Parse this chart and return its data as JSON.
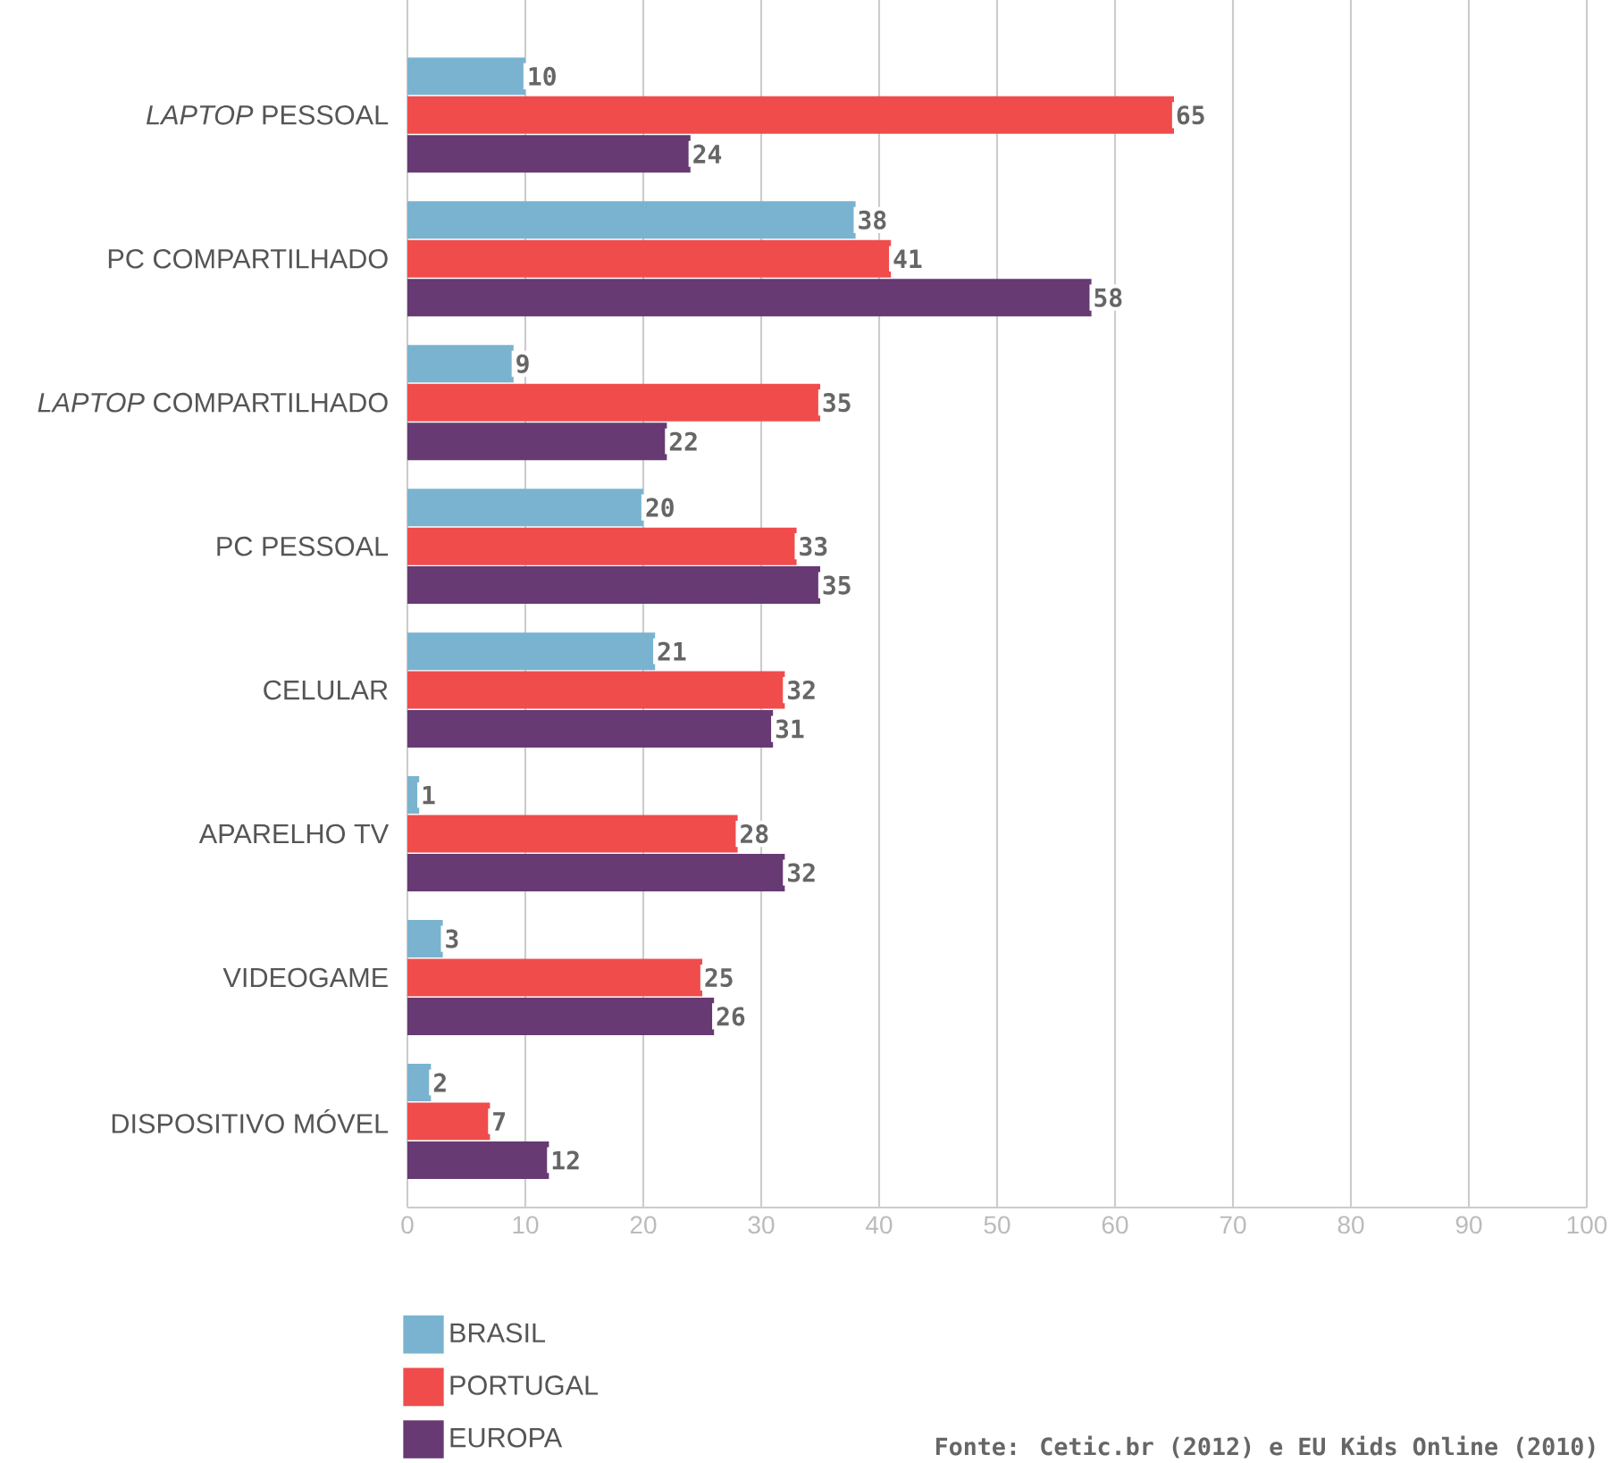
{
  "chart_data": {
    "type": "bar",
    "orientation": "horizontal",
    "categories": [
      "*LAPTOP* PESSOAL",
      "PC COMPARTILHADO",
      "*LAPTOP* COMPARTILHADO",
      "PC PESSOAL",
      "CELULAR",
      "APARELHO TV",
      "VIDEOGAME",
      "DISPOSITIVO MÓVEL"
    ],
    "series": [
      {
        "name": "BRASIL",
        "color": "#7ab3d0",
        "values": [
          10,
          38,
          9,
          20,
          21,
          1,
          3,
          2
        ]
      },
      {
        "name": "PORTUGAL",
        "color": "#f04c4c",
        "values": [
          65,
          41,
          35,
          33,
          32,
          28,
          25,
          7
        ]
      },
      {
        "name": "EUROPA",
        "color": "#673a73",
        "values": [
          24,
          58,
          22,
          35,
          31,
          32,
          26,
          12
        ]
      }
    ],
    "xlim": [
      0,
      100
    ],
    "xticks": [
      0,
      10,
      20,
      30,
      40,
      50,
      60,
      70,
      80,
      90,
      100
    ],
    "grid": "x",
    "legend": "bottom",
    "data_labels": true,
    "annotations": [
      "Fonte: Cetic.br (2012) e EU Kids Online (2010)"
    ]
  }
}
